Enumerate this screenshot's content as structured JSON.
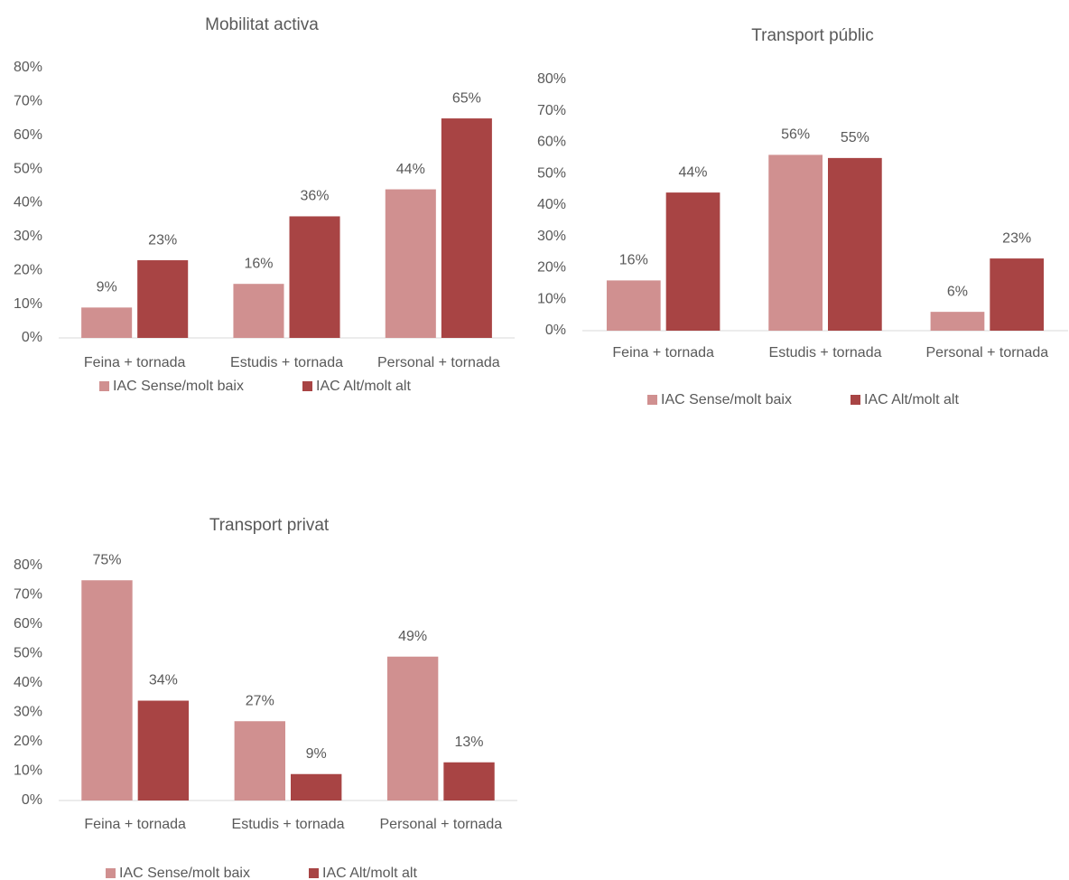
{
  "chart_data": [
    {
      "type": "bar",
      "title": "Mobilitat activa",
      "categories": [
        "Feina + tornada",
        "Estudis + tornada",
        "Personal + tornada"
      ],
      "series": [
        {
          "name": "IAC Sense/molt baix",
          "color": "#d09090",
          "values": [
            9,
            16,
            44
          ],
          "value_labels": [
            "9%",
            "16%",
            "44%"
          ]
        },
        {
          "name": "IAC Alt/molt alt",
          "color": "#a84444",
          "values": [
            23,
            36,
            65
          ],
          "value_labels": [
            "23%",
            "36%",
            "65%"
          ]
        }
      ],
      "ylim": [
        0,
        80
      ],
      "yticks": [
        {
          "value": 0,
          "label": "0%"
        },
        {
          "value": 10,
          "label": "10%"
        },
        {
          "value": 20,
          "label": "20%"
        },
        {
          "value": 30,
          "label": "30%"
        },
        {
          "value": 40,
          "label": "40%"
        },
        {
          "value": 50,
          "label": "50%"
        },
        {
          "value": 60,
          "label": "60%"
        },
        {
          "value": 70,
          "label": "70%"
        },
        {
          "value": 80,
          "label": "80%"
        }
      ],
      "legend": "bottom"
    },
    {
      "type": "bar",
      "title": "Transport públic",
      "categories": [
        "Feina + tornada",
        "Estudis + tornada",
        "Personal + tornada"
      ],
      "series": [
        {
          "name": "IAC Sense/molt baix",
          "color": "#d09090",
          "values": [
            16,
            56,
            6
          ],
          "value_labels": [
            "16%",
            "56%",
            "6%"
          ]
        },
        {
          "name": "IAC Alt/molt alt",
          "color": "#a84444",
          "values": [
            44,
            55,
            23
          ],
          "value_labels": [
            "44%",
            "55%",
            "23%"
          ]
        }
      ],
      "ylim": [
        0,
        80
      ],
      "yticks": [
        {
          "value": 0,
          "label": "0%"
        },
        {
          "value": 10,
          "label": "10%"
        },
        {
          "value": 20,
          "label": "20%"
        },
        {
          "value": 30,
          "label": "30%"
        },
        {
          "value": 40,
          "label": "40%"
        },
        {
          "value": 50,
          "label": "50%"
        },
        {
          "value": 60,
          "label": "60%"
        },
        {
          "value": 70,
          "label": "70%"
        },
        {
          "value": 80,
          "label": "80%"
        }
      ],
      "legend": "bottom"
    },
    {
      "type": "bar",
      "title": "Transport privat",
      "categories": [
        "Feina + tornada",
        "Estudis + tornada",
        "Personal + tornada"
      ],
      "series": [
        {
          "name": "IAC Sense/molt baix",
          "color": "#d09090",
          "values": [
            75,
            27,
            49
          ],
          "value_labels": [
            "75%",
            "27%",
            "49%"
          ]
        },
        {
          "name": "IAC Alt/molt alt",
          "color": "#a84444",
          "values": [
            34,
            9,
            13
          ],
          "value_labels": [
            "34%",
            "9%",
            "13%"
          ]
        }
      ],
      "ylim": [
        0,
        80
      ],
      "yticks": [
        {
          "value": 0,
          "label": "0%"
        },
        {
          "value": 10,
          "label": "10%"
        },
        {
          "value": 20,
          "label": "20%"
        },
        {
          "value": 30,
          "label": "30%"
        },
        {
          "value": 40,
          "label": "40%"
        },
        {
          "value": 50,
          "label": "50%"
        },
        {
          "value": 60,
          "label": "60%"
        },
        {
          "value": 70,
          "label": "70%"
        },
        {
          "value": 80,
          "label": "80%"
        }
      ],
      "legend": "bottom"
    }
  ]
}
